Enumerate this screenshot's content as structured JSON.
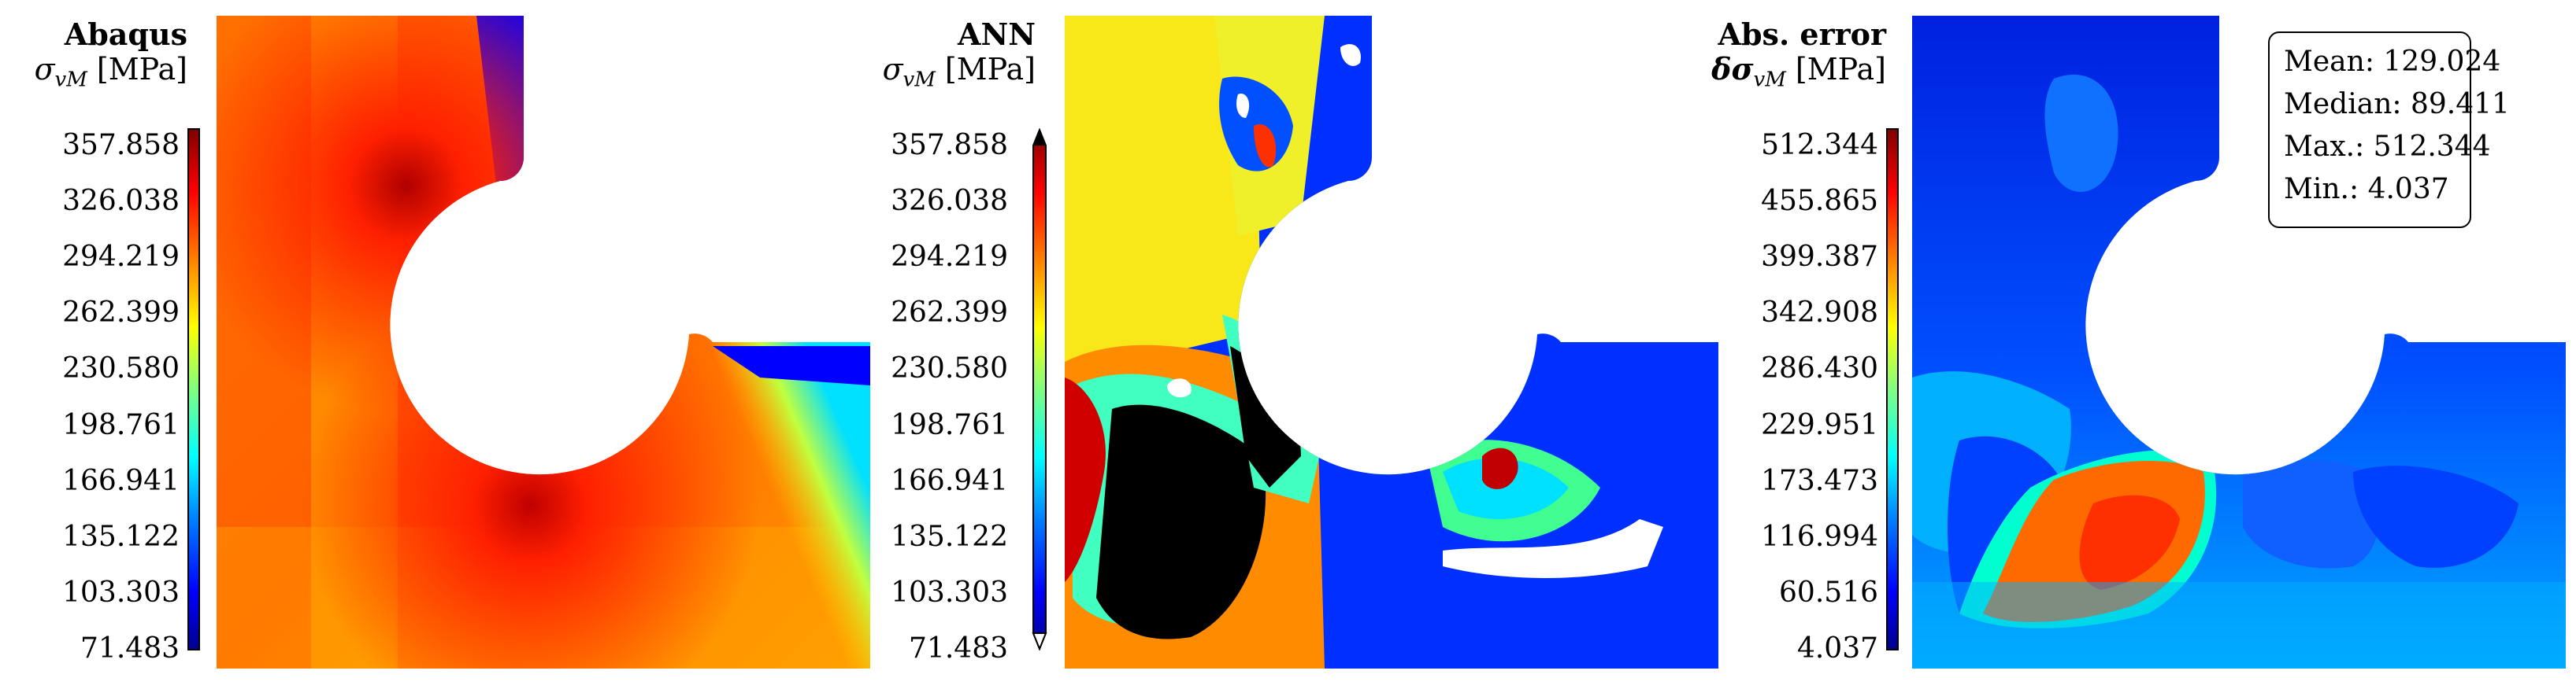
{
  "chart_data": [
    {
      "type": "heatmap",
      "title": "Abaqus",
      "quantity_label": "σvM [MPa]",
      "colormap": "jet",
      "color_ticks": [
        "357.858",
        "326.038",
        "294.219",
        "262.399",
        "230.580",
        "198.761",
        "166.941",
        "135.122",
        "103.303",
        "71.483"
      ],
      "range": [
        71.483,
        357.858
      ]
    },
    {
      "type": "heatmap",
      "title": "ANN",
      "quantity_label": "σvM [MPa]",
      "colormap": "jet",
      "color_ticks": [
        "357.858",
        "326.038",
        "294.219",
        "262.399",
        "230.580",
        "198.761",
        "166.941",
        "135.122",
        "103.303",
        "71.483"
      ],
      "range": [
        71.483,
        357.858
      ],
      "colorbar_extend": "both"
    },
    {
      "type": "heatmap",
      "title": "Abs. error",
      "quantity_label": "δσvM [MPa]",
      "colormap": "jet",
      "color_ticks": [
        "512.344",
        "455.865",
        "399.387",
        "342.908",
        "286.430",
        "229.951",
        "173.473",
        "116.994",
        "60.516",
        "4.037"
      ],
      "range": [
        4.037,
        512.344
      ],
      "stats": {
        "mean": "Mean: 129.024",
        "median": "Median: 89.411",
        "max": "Max.: 512.344",
        "min": "Min.: 4.037"
      }
    }
  ]
}
